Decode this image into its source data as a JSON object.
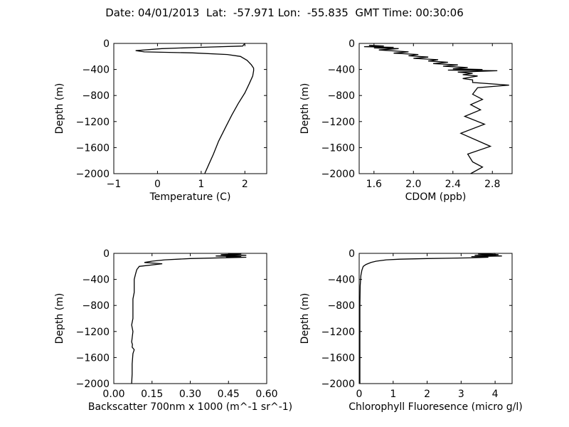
{
  "figure_title": "Date: 04/01/2013  Lat:  -57.971 Lon:  -55.835  GMT Time: 00:30:06",
  "chart_data": [
    {
      "type": "line",
      "title": "",
      "xlabel": "Temperature (C)",
      "ylabel": "Depth (m)",
      "xlim": [
        -1,
        2.5
      ],
      "ylim": [
        -2000,
        0
      ],
      "xticks": [
        -1,
        0,
        1,
        2
      ],
      "xtick_labels": [
        "−1",
        "0",
        "1",
        "2"
      ],
      "yticks": [
        0,
        -400,
        -800,
        -1200,
        -1600,
        -2000
      ],
      "ytick_labels": [
        "0",
        "−400",
        "−800",
        "−1200",
        "−1600",
        "−2000"
      ],
      "grid": false,
      "series": [
        {
          "x": [
            2.0,
            1.95,
            1.0,
            0.1,
            -0.5,
            -0.3,
            0.8,
            1.6,
            1.9,
            2.05,
            2.15,
            2.2,
            2.2,
            2.18,
            2.1,
            2.0,
            1.85,
            1.7,
            1.55,
            1.4,
            1.28,
            1.18,
            1.08
          ],
          "y": [
            0,
            -40,
            -60,
            -80,
            -110,
            -130,
            -145,
            -170,
            -200,
            -260,
            -330,
            -380,
            -420,
            -500,
            -620,
            -760,
            -920,
            -1100,
            -1300,
            -1500,
            -1700,
            -1850,
            -2000
          ]
        }
      ]
    },
    {
      "type": "line",
      "title": "",
      "xlabel": "CDOM (ppb)",
      "ylabel": "Depth (m)",
      "xlim": [
        1.45,
        3.0
      ],
      "ylim": [
        -2000,
        0
      ],
      "xticks": [
        1.6,
        2.0,
        2.4,
        2.8
      ],
      "xtick_labels": [
        "1.6",
        "2.0",
        "2.4",
        "2.8"
      ],
      "yticks": [
        0,
        -400,
        -800,
        -1200,
        -1600,
        -2000
      ],
      "ytick_labels": [
        "0",
        "−400",
        "−800",
        "−1200",
        "−1600",
        "−2000"
      ],
      "grid": false,
      "series": [
        {
          "x": [
            1.55,
            1.7,
            1.5,
            1.8,
            1.6,
            1.85,
            1.65,
            1.95,
            1.8,
            2.05,
            1.95,
            2.15,
            2.0,
            2.25,
            2.15,
            2.35,
            2.2,
            2.45,
            2.3,
            2.55,
            2.4,
            2.7,
            2.35,
            2.85,
            2.45,
            2.6,
            2.5,
            2.65,
            2.5,
            2.6,
            2.6,
            2.97,
            2.65,
            2.6,
            2.7,
            2.58,
            2.68,
            2.52,
            2.72,
            2.48,
            2.78,
            2.55,
            2.6,
            2.7,
            2.58
          ],
          "y": [
            -30,
            -40,
            -50,
            -60,
            -70,
            -80,
            -100,
            -130,
            -150,
            -170,
            -190,
            -210,
            -230,
            -250,
            -270,
            -290,
            -310,
            -330,
            -350,
            -370,
            -390,
            -400,
            -410,
            -420,
            -440,
            -460,
            -480,
            -500,
            -540,
            -560,
            -600,
            -640,
            -680,
            -780,
            -860,
            -940,
            -1020,
            -1120,
            -1240,
            -1380,
            -1580,
            -1700,
            -1820,
            -1900,
            -2000
          ]
        }
      ]
    },
    {
      "type": "line",
      "title": "",
      "xlabel": "Backscatter 700nm x 1000 (m^-1 sr^-1)",
      "ylabel": "Depth (m)",
      "xlim": [
        0,
        0.6
      ],
      "ylim": [
        -2000,
        0
      ],
      "xticks": [
        0.0,
        0.15,
        0.3,
        0.45,
        0.6
      ],
      "xtick_labels": [
        "0.00",
        "0.15",
        "0.30",
        "0.45",
        "0.60"
      ],
      "yticks": [
        0,
        -400,
        -800,
        -1200,
        -1600,
        -2000
      ],
      "ytick_labels": [
        "0",
        "−400",
        "−800",
        "−1200",
        "−1600",
        "−2000"
      ],
      "grid": false,
      "series": [
        {
          "x": [
            0.45,
            0.5,
            0.42,
            0.52,
            0.4,
            0.5,
            0.44,
            0.52,
            0.3,
            0.2,
            0.15,
            0.12,
            0.19,
            0.1,
            0.09,
            0.085,
            0.08,
            0.08,
            0.08,
            0.075,
            0.075,
            0.075,
            0.075,
            0.07,
            0.075,
            0.072,
            0.07,
            0.073,
            0.072,
            0.08,
            0.075,
            0.072,
            0.072,
            0.07
          ],
          "y": [
            0,
            -10,
            -20,
            -30,
            -40,
            -50,
            -55,
            -60,
            -80,
            -100,
            -120,
            -140,
            -160,
            -200,
            -250,
            -320,
            -400,
            -500,
            -600,
            -700,
            -800,
            -900,
            -1000,
            -1100,
            -1200,
            -1300,
            -1360,
            -1400,
            -1440,
            -1480,
            -1540,
            -1700,
            -1850,
            -2000
          ]
        }
      ]
    },
    {
      "type": "line",
      "title": "",
      "xlabel": "Chlorophyll Fluoresence (micro g/l)",
      "ylabel": "Depth (m)",
      "xlim": [
        0,
        4.5
      ],
      "ylim": [
        -2000,
        0
      ],
      "xticks": [
        0,
        1,
        2,
        3,
        4
      ],
      "xtick_labels": [
        "0",
        "1",
        "2",
        "3",
        "4"
      ],
      "yticks": [
        0,
        -400,
        -800,
        -1200,
        -1600,
        -2000
      ],
      "ytick_labels": [
        "0",
        "−400",
        "−800",
        "−1200",
        "−1600",
        "−2000"
      ],
      "grid": false,
      "series": [
        {
          "x": [
            4.0,
            3.5,
            4.1,
            3.4,
            4.2,
            3.3,
            3.8,
            3.2,
            2.0,
            1.2,
            0.8,
            0.5,
            0.35,
            0.2,
            0.12,
            0.08,
            0.05,
            0.03,
            0.02,
            0.02,
            0.02,
            0.02
          ],
          "y": [
            0,
            -10,
            -20,
            -30,
            -40,
            -50,
            -60,
            -70,
            -80,
            -90,
            -100,
            -120,
            -140,
            -170,
            -200,
            -260,
            -340,
            -500,
            -800,
            -1200,
            -1600,
            -2000
          ]
        }
      ]
    }
  ]
}
